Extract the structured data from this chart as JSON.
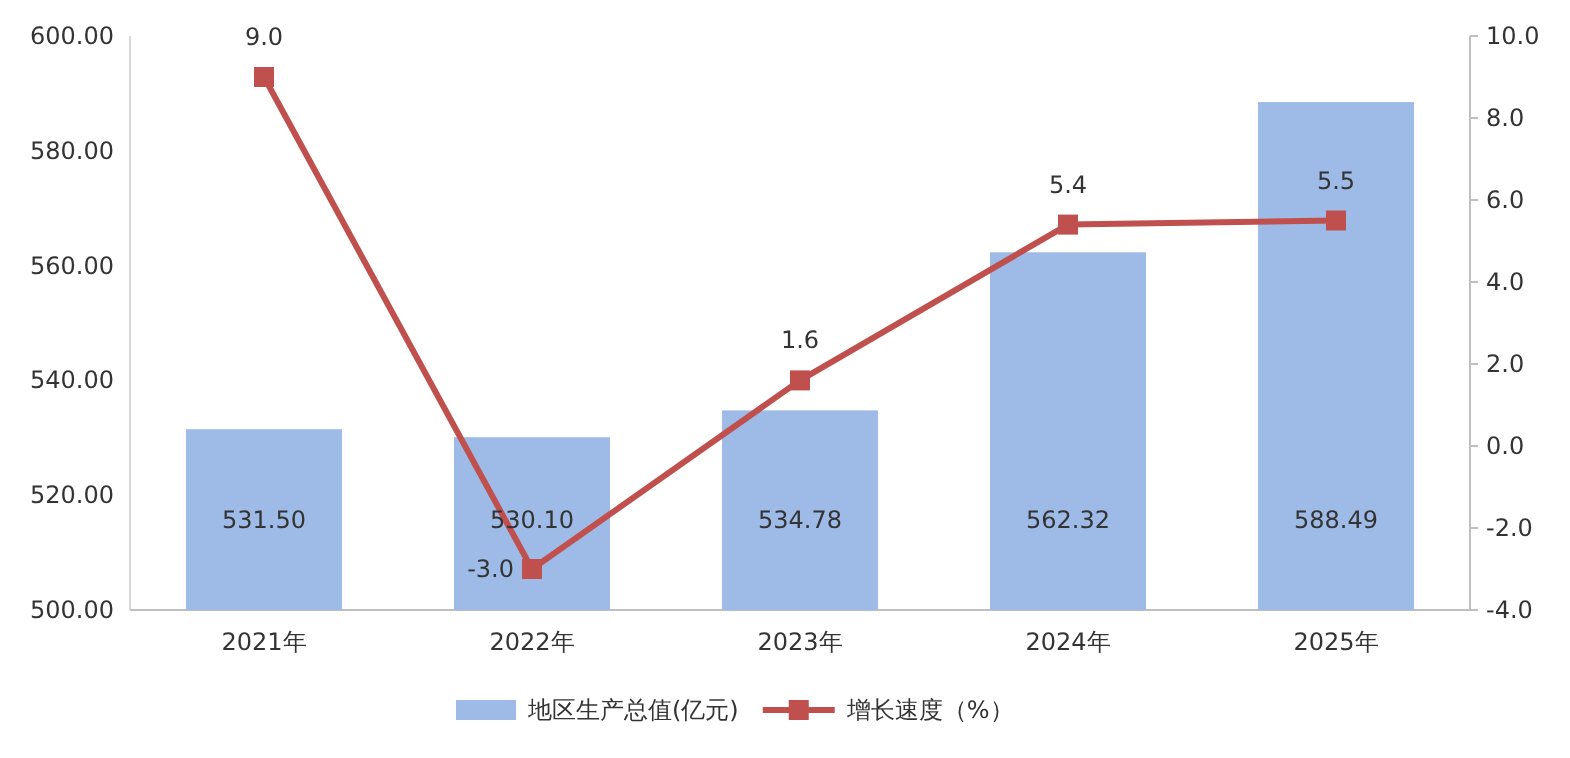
{
  "chart_data": {
    "type": "bar",
    "categories": [
      "2021年",
      "2022年",
      "2023年",
      "2024年",
      "2025年"
    ],
    "series": [
      {
        "name": "地区生产总值(亿元)",
        "color": "#9dbbe6",
        "values": [
          531.5,
          530.1,
          534.78,
          562.32,
          588.49
        ],
        "value_labels": [
          "531.50",
          "530.10",
          "534.78",
          "562.32",
          "588.49"
        ]
      },
      {
        "name": "增长速度（%）",
        "type": "line",
        "axis": "y2",
        "color": "#c0504d",
        "values": [
          9.0,
          -3.0,
          1.6,
          5.4,
          5.5
        ],
        "value_labels": [
          "9.0",
          "-3.0",
          "1.6",
          "5.4",
          "5.5"
        ]
      }
    ],
    "ylim": [
      500,
      600
    ],
    "yticks": [
      {
        "value": 500,
        "label": "500.00"
      },
      {
        "value": 520,
        "label": "520.00"
      },
      {
        "value": 540,
        "label": "540.00"
      },
      {
        "value": 560,
        "label": "560.00"
      },
      {
        "value": 580,
        "label": "580.00"
      },
      {
        "value": 600,
        "label": "600.00"
      }
    ],
    "y2lim": [
      -4,
      10
    ],
    "y2ticks": [
      {
        "value": -4,
        "label": "-4.0"
      },
      {
        "value": -2,
        "label": "-2.0"
      },
      {
        "value": 0,
        "label": "0.0"
      },
      {
        "value": 2,
        "label": "2.0"
      },
      {
        "value": 4,
        "label": "4.0"
      },
      {
        "value": 6,
        "label": "6.0"
      },
      {
        "value": 8,
        "label": "8.0"
      },
      {
        "value": 10,
        "label": "10.0"
      }
    ],
    "marker": "square",
    "legend": "bottom"
  }
}
